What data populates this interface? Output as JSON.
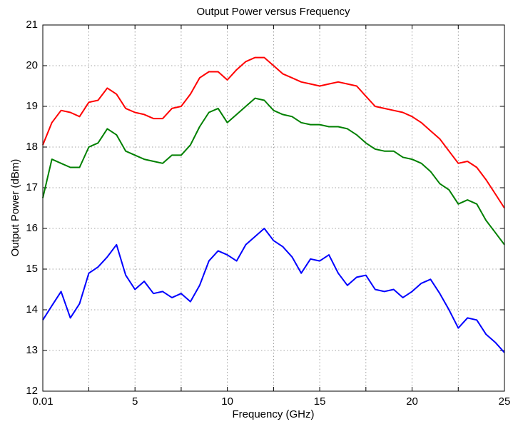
{
  "chart_data": {
    "type": "line",
    "title": "Output Power versus Frequency",
    "xlabel": "Frequency (GHz)",
    "ylabel": "Output Power (dBm)",
    "x": [
      0.01,
      0.5,
      1,
      1.5,
      2,
      2.5,
      3,
      3.5,
      4,
      4.5,
      5,
      5.5,
      6,
      6.5,
      7,
      7.5,
      8,
      8.5,
      9,
      9.5,
      10,
      10.5,
      11,
      11.5,
      12,
      12.5,
      13,
      13.5,
      14,
      14.5,
      15,
      15.5,
      16,
      16.5,
      17,
      17.5,
      18,
      18.5,
      19,
      19.5,
      20,
      20.5,
      21,
      21.5,
      22,
      22.5,
      23,
      23.5,
      24,
      24.5,
      25
    ],
    "series": [
      {
        "color": "#ff0000",
        "values": [
          18.05,
          18.6,
          18.9,
          18.85,
          18.75,
          19.1,
          19.15,
          19.45,
          19.3,
          18.95,
          18.85,
          18.8,
          18.7,
          18.7,
          18.95,
          19.0,
          19.3,
          19.7,
          19.85,
          19.85,
          19.65,
          19.9,
          20.1,
          20.2,
          20.2,
          20.0,
          19.8,
          19.7,
          19.6,
          19.55,
          19.5,
          19.55,
          19.6,
          19.55,
          19.5,
          19.25,
          19.0,
          18.95,
          18.9,
          18.85,
          18.75,
          18.6,
          18.4,
          18.2,
          17.9,
          17.6,
          17.65,
          17.5,
          17.2,
          16.85,
          16.5
        ]
      },
      {
        "color": "#008000",
        "values": [
          16.75,
          17.7,
          17.6,
          17.5,
          17.5,
          18.0,
          18.1,
          18.45,
          18.3,
          17.9,
          17.8,
          17.7,
          17.65,
          17.6,
          17.8,
          17.8,
          18.05,
          18.5,
          18.85,
          18.95,
          18.6,
          18.8,
          19.0,
          19.2,
          19.15,
          18.9,
          18.8,
          18.75,
          18.6,
          18.55,
          18.55,
          18.5,
          18.5,
          18.45,
          18.3,
          18.1,
          17.95,
          17.9,
          17.9,
          17.75,
          17.7,
          17.6,
          17.4,
          17.1,
          16.95,
          16.6,
          16.7,
          16.6,
          16.2,
          15.9,
          15.6
        ]
      },
      {
        "color": "#0000ff",
        "values": [
          13.75,
          14.1,
          14.45,
          13.8,
          14.15,
          14.9,
          15.05,
          15.3,
          15.6,
          14.85,
          14.5,
          14.7,
          14.4,
          14.45,
          14.3,
          14.4,
          14.2,
          14.6,
          15.2,
          15.45,
          15.35,
          15.2,
          15.6,
          15.8,
          16.0,
          15.7,
          15.55,
          15.3,
          14.9,
          15.25,
          15.2,
          15.35,
          14.9,
          14.6,
          14.8,
          14.85,
          14.5,
          14.45,
          14.5,
          14.3,
          14.45,
          14.65,
          14.75,
          14.4,
          14.0,
          13.55,
          13.8,
          13.75,
          13.4,
          13.2,
          12.95
        ]
      }
    ],
    "xlim": [
      0.01,
      25
    ],
    "ylim": [
      12,
      21
    ],
    "xticks": [
      0.01,
      5,
      10,
      15,
      20,
      25
    ],
    "xminor_ticks": [
      2.5,
      7.5,
      12.5,
      17.5,
      22.5
    ],
    "yticks": [
      12,
      13,
      14,
      15,
      16,
      17,
      18,
      19,
      20,
      21
    ],
    "grid": true
  }
}
